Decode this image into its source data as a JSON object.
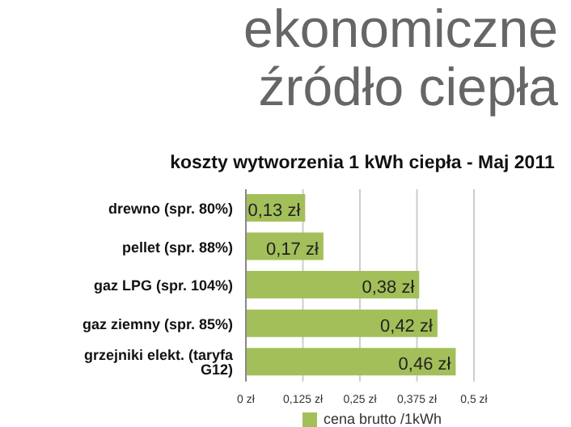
{
  "chart_data": {
    "type": "bar",
    "orientation": "horizontal",
    "title": "ekonomiczne źródło ciepła",
    "subtitle": "koszty wytworzenia 1 kWh ciepła - Maj 2011",
    "categories": [
      "drewno (spr. 80%)",
      "pellet (spr. 88%)",
      "gaz LPG (spr. 104%)",
      "gaz ziemny (spr. 85%)",
      "grzejniki elekt. (taryfa G12)"
    ],
    "series": [
      {
        "name": "cena brutto /1kWh",
        "color": "#a3bf5a",
        "values": [
          0.13,
          0.17,
          0.38,
          0.42,
          0.46
        ],
        "value_labels": [
          "0,13 zł",
          "0,17 zł",
          "0,38 zł",
          "0,42 zł",
          "0,46 zł"
        ]
      }
    ],
    "xlim": [
      0,
      0.5
    ],
    "xticks": [
      {
        "value": 0,
        "label": "0 zł"
      },
      {
        "value": 0.125,
        "label": "0,125 zł"
      },
      {
        "value": 0.25,
        "label": "0,25 zł"
      },
      {
        "value": 0.375,
        "label": "0,375 zł"
      },
      {
        "value": 0.5,
        "label": "0,5 zł"
      }
    ],
    "grid": "x",
    "legend": "bottom right"
  }
}
